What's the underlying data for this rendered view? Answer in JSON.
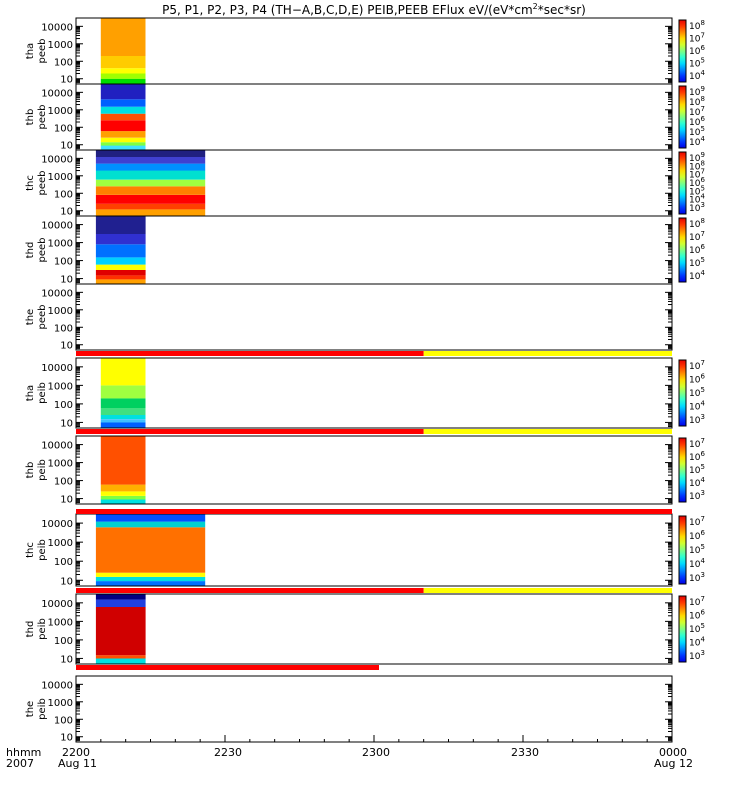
{
  "title": {
    "prefix": "P5, P1, P2, P3, P4 (TH−A,B,C,D,E) PEIB,PEEB EFlux eV/(eV*cm",
    "sup": "2",
    "suffix": "*sec*sr)"
  },
  "x_labels": {
    "row1_lead": "hhmm",
    "row2_lead": "2007",
    "ticks": [
      "2200",
      "2230",
      "2300",
      "2330",
      "0000"
    ],
    "dates": [
      "Aug 11",
      "Aug 12"
    ]
  },
  "colors": {
    "bar_red": "#ff0000",
    "bar_yellow": "#ffff00",
    "frame": "#000000"
  },
  "chart_data": {
    "type": "heatmap",
    "x_axis": {
      "unit": "hhmm",
      "start": "2200",
      "end": "0000",
      "range_min": [
        0,
        120
      ],
      "tick_labels": [
        "2200",
        "2230",
        "2300",
        "2330",
        "0000"
      ]
    },
    "y_axis": {
      "scale": "log",
      "range_eV": [
        5,
        30000
      ],
      "tick_values": [
        10,
        100,
        1000,
        10000
      ],
      "tick_labels": [
        "10",
        "100",
        "1000",
        "10000"
      ]
    },
    "panels": [
      {
        "label": [
          "tha",
          "peeb"
        ],
        "data_min": [
          5,
          14
        ],
        "bands": [
          {
            "emax": 10,
            "color": "#00dd00"
          },
          {
            "emax": 20,
            "color": "#a0ff00"
          },
          {
            "emax": 40,
            "color": "#ffff00"
          },
          {
            "emax": 200,
            "color": "#ffcc00"
          },
          {
            "emax": 30000,
            "color": "#ffa000"
          }
        ],
        "colorbar": {
          "ticks": [
            "10^4",
            "10^5",
            "10^6",
            "10^7",
            "10^8"
          ]
        }
      },
      {
        "label": [
          "thb",
          "peeb"
        ],
        "data_min": [
          5,
          14
        ],
        "bands": [
          {
            "emax": 9,
            "color": "#40e0ff"
          },
          {
            "emax": 14,
            "color": "#80ff40"
          },
          {
            "emax": 25,
            "color": "#ffff00"
          },
          {
            "emax": 60,
            "color": "#ffa000"
          },
          {
            "emax": 250,
            "color": "#ff0000"
          },
          {
            "emax": 600,
            "color": "#ff5000"
          },
          {
            "emax": 1500,
            "color": "#00e0e0"
          },
          {
            "emax": 4000,
            "color": "#0060ff"
          },
          {
            "emax": 30000,
            "color": "#2020c0"
          }
        ],
        "colorbar": {
          "ticks": [
            "10^4",
            "10^5",
            "10^6",
            "10^7",
            "10^8",
            "10^9"
          ]
        }
      },
      {
        "label": [
          "thc",
          "peeb"
        ],
        "data_min": [
          4,
          26
        ],
        "bands": [
          {
            "emax": 12,
            "color": "#ffa000"
          },
          {
            "emax": 25,
            "color": "#ff4000"
          },
          {
            "emax": 80,
            "color": "#ff0000"
          },
          {
            "emax": 250,
            "color": "#ff8000"
          },
          {
            "emax": 600,
            "color": "#a0ff40"
          },
          {
            "emax": 2000,
            "color": "#00e0d0"
          },
          {
            "emax": 5000,
            "color": "#0090ff"
          },
          {
            "emax": 12000,
            "color": "#4040d0"
          },
          {
            "emax": 30000,
            "color": "#202080"
          }
        ],
        "colorbar": {
          "ticks": [
            "10^3",
            "10^4",
            "10^5",
            "10^6",
            "10^7",
            "10^8",
            "10^9"
          ]
        }
      },
      {
        "label": [
          "thd",
          "peeb"
        ],
        "data_min": [
          4,
          14
        ],
        "bands": [
          {
            "emax": 9,
            "color": "#ffa000"
          },
          {
            "emax": 15,
            "color": "#ff3000"
          },
          {
            "emax": 30,
            "color": "#e00000"
          },
          {
            "emax": 60,
            "color": "#ffff00"
          },
          {
            "emax": 150,
            "color": "#00d0ff"
          },
          {
            "emax": 800,
            "color": "#0070ff"
          },
          {
            "emax": 3000,
            "color": "#3030d0"
          },
          {
            "emax": 30000,
            "color": "#202090"
          }
        ],
        "colorbar": {
          "ticks": [
            "10^4",
            "10^5",
            "10^6",
            "10^7",
            "10^8"
          ]
        }
      },
      {
        "label": [
          "the",
          "peeb"
        ],
        "data_min": null,
        "bands": [],
        "colorbar": null
      },
      {
        "label": [
          "tha",
          "peib"
        ],
        "data_min": [
          5,
          14
        ],
        "bands": [
          {
            "emax": 10,
            "color": "#0060ff"
          },
          {
            "emax": 15,
            "color": "#40c0ff"
          },
          {
            "emax": 25,
            "color": "#00e0e0"
          },
          {
            "emax": 60,
            "color": "#40e080"
          },
          {
            "emax": 200,
            "color": "#00d060"
          },
          {
            "emax": 1000,
            "color": "#a0ff40"
          },
          {
            "emax": 30000,
            "color": "#ffff00"
          }
        ],
        "colorbar": {
          "ticks": [
            "10^3",
            "10^4",
            "10^5",
            "10^6",
            "10^7"
          ]
        }
      },
      {
        "label": [
          "thb",
          "peib"
        ],
        "data_min": [
          5,
          14
        ],
        "bands": [
          {
            "emax": 9,
            "color": "#00e0e0"
          },
          {
            "emax": 14,
            "color": "#80ff40"
          },
          {
            "emax": 25,
            "color": "#ffff00"
          },
          {
            "emax": 60,
            "color": "#ffb000"
          },
          {
            "emax": 30000,
            "color": "#ff5000"
          }
        ],
        "colorbar": {
          "ticks": [
            "10^3",
            "10^4",
            "10^5",
            "10^6",
            "10^7"
          ]
        }
      },
      {
        "label": [
          "thc",
          "peib"
        ],
        "data_min": [
          4,
          26
        ],
        "bands": [
          {
            "emax": 9,
            "color": "#0070ff"
          },
          {
            "emax": 15,
            "color": "#00e0e0"
          },
          {
            "emax": 25,
            "color": "#ffff00"
          },
          {
            "emax": 6000,
            "color": "#ff7000"
          },
          {
            "emax": 12000,
            "color": "#00d0d0"
          },
          {
            "emax": 30000,
            "color": "#0050ff"
          }
        ],
        "colorbar": {
          "ticks": [
            "10^3",
            "10^4",
            "10^5",
            "10^6",
            "10^7"
          ]
        }
      },
      {
        "label": [
          "thd",
          "peib"
        ],
        "data_min": [
          4,
          14
        ],
        "bands": [
          {
            "emax": 10,
            "color": "#00e0e0"
          },
          {
            "emax": 15,
            "color": "#ff5000"
          },
          {
            "emax": 6000,
            "color": "#d00000"
          },
          {
            "emax": 15000,
            "color": "#2040e0"
          },
          {
            "emax": 30000,
            "color": "#000080"
          }
        ],
        "colorbar": {
          "ticks": [
            "10^3",
            "10^4",
            "10^5",
            "10^6",
            "10^7"
          ]
        }
      },
      {
        "label": [
          "the",
          "peib"
        ],
        "data_min": null,
        "bands": [],
        "colorbar": null
      }
    ],
    "mode_bars": [
      {
        "after_panel": 4,
        "segments": [
          {
            "from": 0,
            "to": 70,
            "color": "#ff0000"
          },
          {
            "from": 70,
            "to": 120,
            "color": "#ffff00"
          }
        ]
      },
      {
        "after_panel": 5,
        "segments": [
          {
            "from": 0,
            "to": 70,
            "color": "#ff0000"
          },
          {
            "from": 70,
            "to": 120,
            "color": "#ffff00"
          }
        ]
      },
      {
        "after_panel": 6,
        "segments": [
          {
            "from": 0,
            "to": 120,
            "color": "#ff0000"
          }
        ]
      },
      {
        "after_panel": 7,
        "segments": [
          {
            "from": 0,
            "to": 70,
            "color": "#ff0000"
          },
          {
            "from": 70,
            "to": 120,
            "color": "#ffff00"
          }
        ]
      },
      {
        "after_panel": 8,
        "segments": [
          {
            "from": 0,
            "to": 61,
            "color": "#ff0000"
          }
        ]
      }
    ]
  }
}
